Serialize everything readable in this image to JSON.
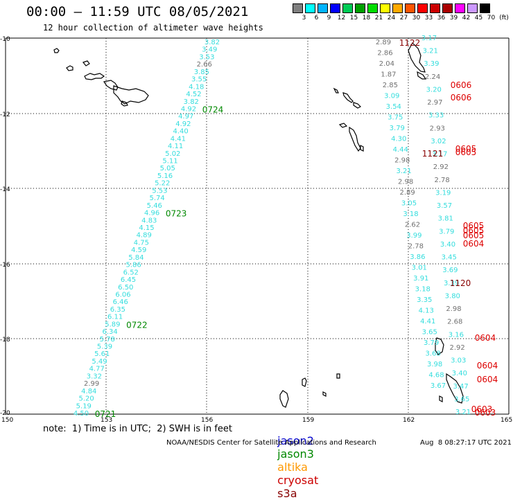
{
  "header": {
    "title": "00:00 – 11:59 UTC 08/05/2021",
    "subtitle": "12 hour collection of altimeter wave heights"
  },
  "legend": {
    "unit": "(ft)",
    "items": [
      {
        "label": "3",
        "color": "#7f7f7f"
      },
      {
        "label": "6",
        "color": "#00ffff"
      },
      {
        "label": "9",
        "color": "#00b4ff"
      },
      {
        "label": "12",
        "color": "#0000ff"
      },
      {
        "label": "15",
        "color": "#00cc55"
      },
      {
        "label": "18",
        "color": "#00a000"
      },
      {
        "label": "21",
        "color": "#00dd00"
      },
      {
        "label": "24",
        "color": "#ffff00"
      },
      {
        "label": "27",
        "color": "#ffaa00"
      },
      {
        "label": "30",
        "color": "#ff5500"
      },
      {
        "label": "33",
        "color": "#ff0000"
      },
      {
        "label": "36",
        "color": "#cc0000"
      },
      {
        "label": "39",
        "color": "#aa0000"
      },
      {
        "label": "42",
        "color": "#ff00ff"
      },
      {
        "label": "45",
        "color": "#cc99ff"
      },
      {
        "label": "70",
        "color": "#000000"
      }
    ]
  },
  "axes": {
    "lon_labels": [
      "150",
      "153",
      "156",
      "159",
      "162",
      "165"
    ],
    "lat_labels": [
      "-10",
      "-12",
      "-14",
      "-16",
      "-18",
      "-20"
    ]
  },
  "colors": {
    "cyan": "#33dddd",
    "gray": "#707070",
    "green": "#008800",
    "red": "#dd0000",
    "darkred": "#880000"
  },
  "track_west": {
    "values": [
      "3.82",
      "3.49",
      "3.53",
      "2.66",
      "3.85",
      "3.55",
      "4.18",
      "4.52",
      "3.82",
      "4.92",
      "4.97",
      "4.92",
      "4.40",
      "4.41",
      "4.11",
      "5.02",
      "5.11",
      "5.05",
      "5.16",
      "5.22",
      "5.53",
      "5.74",
      "5.46",
      "4.96",
      "4.83",
      "4.15",
      "4.89",
      "4.75",
      "4.59",
      "5.84",
      "5.86",
      "6.52",
      "6.45",
      "6.50",
      "6.06",
      "6.46",
      "6.35",
      "6.11",
      "5.89",
      "6.34",
      "5.78",
      "5.39",
      "5.61",
      "5.49",
      "4.77",
      "3.32",
      "2.99",
      "4.84",
      "5.20",
      "5.19",
      "4.50"
    ],
    "gray_indices": [
      3,
      46
    ],
    "times": [
      {
        "label": "0724",
        "row": 9
      },
      {
        "label": "0723",
        "row": 23
      },
      {
        "label": "0722",
        "row": 38
      },
      {
        "label": "0721",
        "row": 50
      }
    ]
  },
  "track_east_a": {
    "values": [
      "2.89",
      "2.86",
      "2.04",
      "1.87",
      "2.85",
      "3.09",
      "3.54",
      "3.75",
      "3.79",
      "4.30",
      "4.44",
      "2.98",
      "3.21",
      "2.98",
      "2.89",
      "3.05",
      "3.18",
      "2.62",
      "3.99",
      "2.78",
      "3.86",
      "3.01",
      "3.91",
      "3.18",
      "3.35",
      "4.13",
      "4.41",
      "3.65",
      "3.79",
      "3.68",
      "3.98",
      "4.68",
      "3.67"
    ],
    "gray_indices": [
      0,
      1,
      2,
      3,
      4,
      11,
      13,
      14,
      17,
      19
    ]
  },
  "track_east_b": {
    "values": [
      "3.17",
      "3.21",
      "3.39",
      "2.24",
      "3.20",
      "2.97",
      "3.33",
      "2.93",
      "3.02",
      "3.17",
      "2.92",
      "2.78",
      "3.19",
      "3.57",
      "3.81",
      "3.79",
      "3.40",
      "3.45",
      "3.69",
      "3.39",
      "3.80",
      "2.98",
      "2.68",
      "3.16",
      "2.92",
      "3.03",
      "3.40",
      "3.47",
      "3.65",
      "3.21"
    ],
    "gray_indices": [
      3,
      5,
      7,
      10,
      11,
      21,
      22,
      24
    ]
  },
  "time_labels_east": [
    {
      "label": "1122",
      "color": "darkred"
    },
    {
      "label": "0606",
      "color": "red"
    },
    {
      "label": "0606",
      "color": "red"
    },
    {
      "label": "0605",
      "color": "red"
    },
    {
      "label": "0605",
      "color": "red"
    },
    {
      "label": "1121",
      "color": "darkred"
    },
    {
      "label": "0605",
      "color": "red"
    },
    {
      "label": "0605",
      "color": "red"
    },
    {
      "label": "0605",
      "color": "red"
    },
    {
      "label": "0604",
      "color": "red"
    },
    {
      "label": "1120",
      "color": "darkred"
    },
    {
      "label": "0604",
      "color": "red"
    },
    {
      "label": "0604",
      "color": "red"
    },
    {
      "label": "0604",
      "color": "red"
    },
    {
      "label": "0603",
      "color": "red"
    },
    {
      "label": "0603",
      "color": "red"
    }
  ],
  "footer": {
    "note": "note:  1) Time is in UTC;  2) SWH is in feet",
    "satellites": [
      {
        "name": "jason2",
        "color": "#0000cc"
      },
      {
        "name": "jason3",
        "color": "#008800"
      },
      {
        "name": "altika",
        "color": "#ff9900"
      },
      {
        "name": "cryosat",
        "color": "#cc0000"
      },
      {
        "name": "s3a",
        "color": "#880000"
      }
    ],
    "credit": "NOAA/NESDIS Center for Satellite Applications and Research",
    "timestamp": "Aug  8 08:27:17 UTC 2021"
  }
}
